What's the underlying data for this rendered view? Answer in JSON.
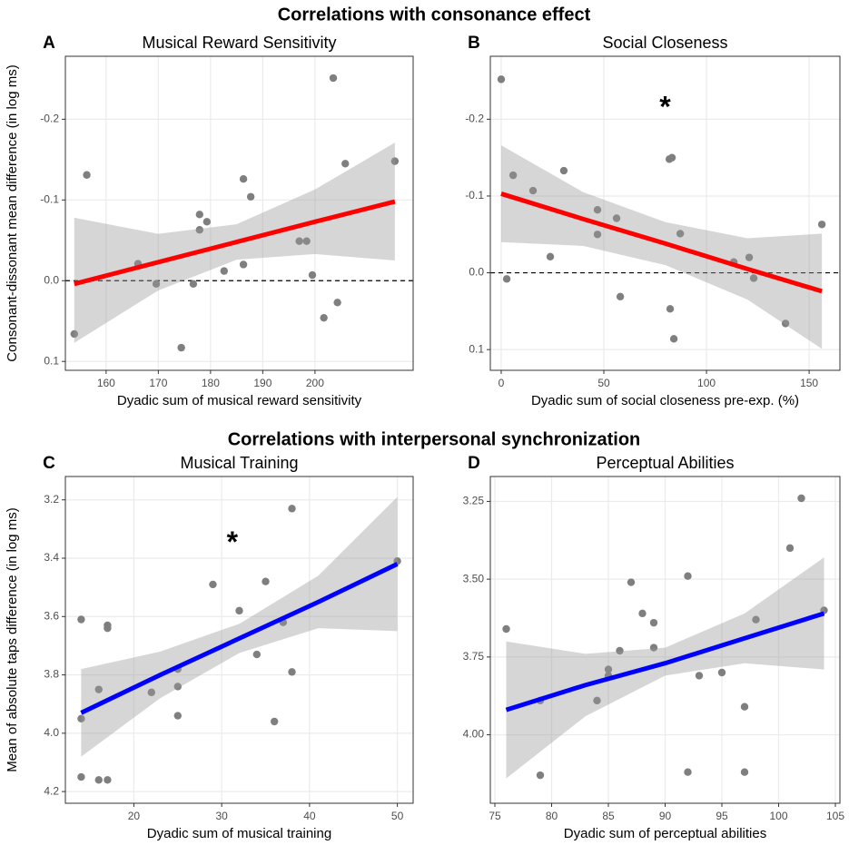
{
  "headings": [
    "Correlations with consonance effect",
    "Correlations with interpersonal synchronization"
  ],
  "chart_data": [
    {
      "type": "scatter",
      "letter": "A",
      "title": "Musical Reward Sensitivity",
      "ylabel": "Consonant-dissonant mean difference (in log ms)",
      "xlabel": "Dyadic sum of musical reward sensitivity",
      "x": [
        153.9,
        156.3,
        166.1,
        169.6,
        174.4,
        176.7,
        177.9,
        177.9,
        179.3,
        182.6,
        186.3,
        186.3,
        187.7,
        197.0,
        198.4,
        199.5,
        201.7,
        204.3,
        203.5,
        205.8,
        215.3
      ],
      "y": [
        0.066,
        -0.131,
        -0.021,
        0.004,
        0.083,
        0.004,
        -0.082,
        -0.063,
        -0.073,
        -0.012,
        -0.126,
        -0.02,
        -0.104,
        -0.049,
        -0.049,
        -0.007,
        0.046,
        0.027,
        -0.251,
        -0.145,
        -0.148
      ],
      "color": "#7f7f7f",
      "fit": {
        "color": "#ff0000",
        "x": [
          153.9,
          170,
          185,
          200,
          215.3
        ],
        "y": [
          0.004,
          -0.023,
          -0.048,
          -0.073,
          -0.098
        ],
        "lower": [
          -0.078,
          -0.058,
          -0.07,
          -0.113,
          -0.171
        ],
        "upper": [
          0.077,
          0.012,
          -0.026,
          -0.033,
          -0.025
        ]
      },
      "xlim": [
        152.2,
        218.8
      ],
      "ylim": [
        0.111,
        -0.278
      ],
      "xticks": [
        160,
        170,
        180,
        190,
        200
      ],
      "yticks": [
        -0.2,
        -0.1,
        {
          "value": 0,
          "label": "0.0"
        },
        0.1
      ],
      "hline": 0
    },
    {
      "type": "scatter",
      "letter": "B",
      "title": "Social Closeness",
      "xlabel": "Dyadic sum of social closeness pre-exp. (%)",
      "x": [
        0,
        2.7,
        5.8,
        15.5,
        23.9,
        30.5,
        46.9,
        46.9,
        56.2,
        58.0,
        81.9,
        83.2,
        82.3,
        84.1,
        87.2,
        113.3,
        120.8,
        123.0,
        138.5,
        156.2
      ],
      "y": [
        -0.252,
        0.008,
        -0.127,
        -0.107,
        -0.021,
        -0.133,
        -0.082,
        -0.05,
        -0.071,
        0.031,
        -0.148,
        -0.15,
        0.047,
        0.086,
        -0.051,
        -0.014,
        -0.02,
        0.007,
        0.066,
        -0.063
      ],
      "color": "#7f7f7f",
      "fit": {
        "color": "#ff0000",
        "x": [
          0,
          40,
          80,
          120,
          156.2
        ],
        "y": [
          -0.103,
          -0.07,
          -0.038,
          -0.005,
          0.024
        ],
        "lower": [
          -0.166,
          -0.105,
          -0.066,
          -0.045,
          -0.051
        ],
        "upper": [
          -0.04,
          -0.035,
          -0.01,
          0.035,
          0.099
        ]
      },
      "xlim": [
        -5.3,
        165
      ],
      "ylim": [
        0.127,
        -0.282
      ],
      "xticks": [
        0,
        50,
        100,
        150
      ],
      "yticks": [
        -0.2,
        -0.1,
        {
          "value": 0,
          "label": "0.0"
        },
        0.1
      ],
      "hline": 0,
      "annotation": "*"
    },
    {
      "type": "scatter",
      "letter": "C",
      "title": "Musical Training",
      "ylabel": "Mean of absolute taps difference (in log ms)",
      "xlabel": "Dyadic sum of musical training",
      "x": [
        14,
        14,
        14,
        16,
        16,
        17,
        17,
        17,
        22,
        25,
        25,
        25,
        29,
        32,
        34,
        35,
        36,
        37,
        38,
        38,
        50
      ],
      "y": [
        3.61,
        3.95,
        4.15,
        3.85,
        4.16,
        3.63,
        3.64,
        4.16,
        3.86,
        3.78,
        3.84,
        3.94,
        3.49,
        3.58,
        3.73,
        3.48,
        3.96,
        3.62,
        3.23,
        3.79,
        3.41
      ],
      "color": "#7f7f7f",
      "fit": {
        "color": "#0000ff",
        "x": [
          14,
          23,
          32,
          41,
          50
        ],
        "y": [
          3.93,
          3.8,
          3.675,
          3.55,
          3.42
        ],
        "lower": [
          3.78,
          3.72,
          3.625,
          3.46,
          3.19
        ],
        "upper": [
          4.08,
          3.88,
          3.725,
          3.64,
          3.65
        ]
      },
      "xlim": [
        12.2,
        51.8
      ],
      "ylim": [
        4.24,
        3.12
      ],
      "xticks": [
        20,
        30,
        40,
        50
      ],
      "yticks": [
        3.2,
        3.4,
        3.6,
        3.8,
        {
          "value": 4,
          "label": "4.0"
        },
        4.2
      ],
      "annotation": "*"
    },
    {
      "type": "scatter",
      "letter": "D",
      "title": "Perceptual Abilities",
      "xlabel": "Dyadic sum of perceptual abilities",
      "x": [
        76,
        79,
        79,
        84,
        85,
        85,
        86,
        87,
        88,
        89,
        89,
        92,
        92,
        93,
        95,
        97,
        97,
        98,
        101,
        102,
        104
      ],
      "y": [
        3.66,
        3.89,
        4.13,
        3.89,
        3.79,
        3.81,
        3.73,
        3.51,
        3.61,
        3.64,
        3.72,
        3.49,
        4.12,
        3.81,
        3.8,
        3.91,
        4.12,
        3.63,
        3.4,
        3.24,
        3.6
      ],
      "color": "#7f7f7f",
      "fit": {
        "color": "#0000ff",
        "x": [
          76,
          83,
          90,
          97,
          104
        ],
        "y": [
          3.92,
          3.84,
          3.77,
          3.69,
          3.61
        ],
        "lower": [
          3.7,
          3.74,
          3.72,
          3.61,
          3.43
        ],
        "upper": [
          4.14,
          3.94,
          3.81,
          3.77,
          3.79
        ]
      },
      "xlim": [
        74.6,
        105.4
      ],
      "ylim": [
        4.22,
        3.17
      ],
      "xticks": [
        75,
        80,
        85,
        90,
        95,
        100,
        105
      ],
      "yticks": [
        3.25,
        {
          "value": 3.5,
          "label": "3.50"
        },
        3.75,
        {
          "value": 4,
          "label": "4.00"
        }
      ]
    }
  ]
}
